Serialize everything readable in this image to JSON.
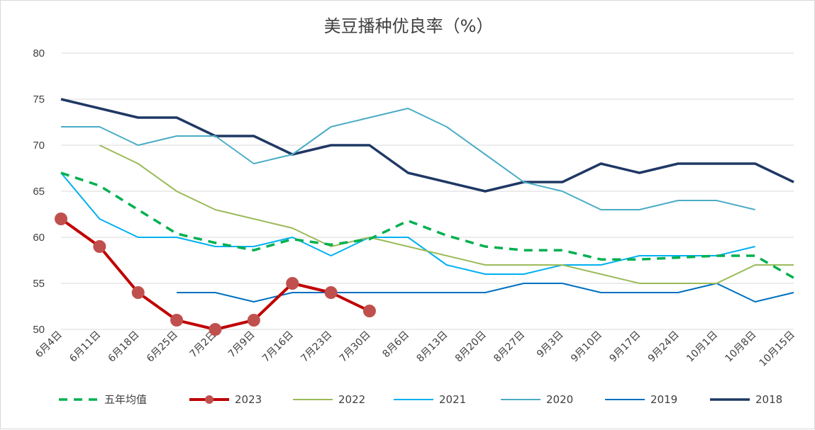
{
  "chart_data": {
    "type": "line",
    "title": "美豆播种优良率（%）",
    "xlabel": "",
    "ylabel": "",
    "ylim": [
      50,
      80
    ],
    "yticks": [
      50,
      55,
      60,
      65,
      70,
      75,
      80
    ],
    "grid": "horizontal",
    "legend_position": "bottom",
    "categories": [
      "6月4日",
      "6月11日",
      "6月18日",
      "6月25日",
      "7月2日",
      "7月9日",
      "7月16日",
      "7月23日",
      "7月30日",
      "8月6日",
      "8月13日",
      "8月20日",
      "8月27日",
      "9月3日",
      "9月10日",
      "9月17日",
      "9月24日",
      "10月1日",
      "10月8日",
      "10月15日"
    ],
    "series": [
      {
        "name": "五年均值",
        "color": "#00b050",
        "style": "dashed",
        "values": [
          67,
          65.6,
          63,
          60.4,
          59.4,
          58.6,
          59.8,
          59.2,
          59.8,
          61.8,
          60.2,
          59,
          58.6,
          58.6,
          57.6,
          57.6,
          57.8,
          58,
          58,
          55.6
        ]
      },
      {
        "name": "2023",
        "color": "#c00000",
        "style": "solid-marker",
        "values": [
          62,
          59,
          54,
          51,
          50,
          51,
          55,
          54,
          52,
          null,
          null,
          null,
          null,
          null,
          null,
          null,
          null,
          null,
          null,
          null
        ]
      },
      {
        "name": "2022",
        "color": "#9bbb59",
        "style": "solid",
        "values": [
          null,
          70,
          68,
          65,
          63,
          62,
          61,
          59,
          60,
          59,
          58,
          57,
          57,
          57,
          56,
          55,
          55,
          55,
          57,
          57
        ]
      },
      {
        "name": "2021",
        "color": "#00b0f0",
        "style": "solid",
        "values": [
          67,
          62,
          60,
          60,
          59,
          59,
          60,
          58,
          60,
          60,
          57,
          56,
          56,
          57,
          57,
          58,
          58,
          58,
          59,
          null
        ]
      },
      {
        "name": "2020",
        "color": "#4bacc6",
        "style": "solid",
        "values": [
          72,
          72,
          70,
          71,
          71,
          68,
          69,
          72,
          73,
          74,
          72,
          69,
          66,
          65,
          63,
          63,
          64,
          64,
          63,
          null
        ]
      },
      {
        "name": "2019",
        "color": "#0070c0",
        "style": "solid",
        "values": [
          null,
          null,
          null,
          54,
          54,
          53,
          54,
          54,
          54,
          54,
          54,
          54,
          55,
          55,
          54,
          54,
          54,
          55,
          53,
          54
        ]
      },
      {
        "name": "2018",
        "color": "#1f3864",
        "style": "thick",
        "values": [
          75,
          74,
          73,
          73,
          71,
          71,
          69,
          70,
          70,
          67,
          66,
          65,
          66,
          66,
          68,
          67,
          68,
          68,
          68,
          66
        ]
      }
    ]
  }
}
